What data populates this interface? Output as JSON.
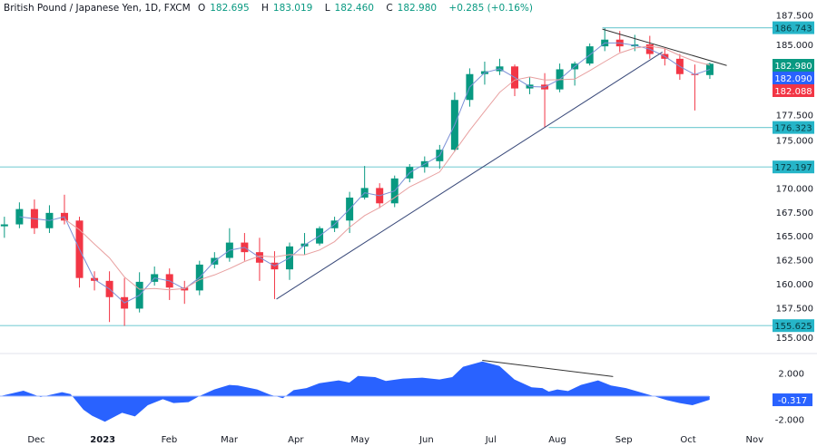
{
  "header": {
    "symbol": "British Pound / Japanese Yen, 1D, FXCM",
    "open_prefix": "O",
    "open": "182.695",
    "high_prefix": "H",
    "high": "183.019",
    "low_prefix": "L",
    "low": "182.460",
    "close_prefix": "C",
    "close": "182.980",
    "change": "+0.285 (+0.16%)"
  },
  "chart_data": [
    {
      "type": "candlestick",
      "interval_shown": "weekly approximation of daily chart",
      "y_ticks": [
        "187.500",
        "185.000",
        "177.500",
        "175.000",
        "170.000",
        "167.500",
        "165.000",
        "162.500",
        "160.000",
        "157.500",
        "155.000"
      ],
      "ylim": [
        155,
        187.5
      ],
      "x_ticks": [
        {
          "label": "Dec",
          "date": "2022-12-01"
        },
        {
          "label": "2023",
          "date": "2023-01-01",
          "bold": true
        },
        {
          "label": "Feb",
          "date": "2023-02-01"
        },
        {
          "label": "Mar",
          "date": "2023-03-01"
        },
        {
          "label": "Apr",
          "date": "2023-04-01"
        },
        {
          "label": "May",
          "date": "2023-05-01"
        },
        {
          "label": "Jun",
          "date": "2023-06-01"
        },
        {
          "label": "Jul",
          "date": "2023-07-01"
        },
        {
          "label": "Aug",
          "date": "2023-08-01"
        },
        {
          "label": "Sep",
          "date": "2023-09-01"
        },
        {
          "label": "Oct",
          "date": "2023-10-01"
        },
        {
          "label": "Nov",
          "date": "2023-11-01"
        }
      ],
      "candles": [
        [
          "2022-11-14",
          166.0,
          167.0,
          164.8,
          166.2
        ],
        [
          "2022-11-21",
          166.2,
          168.5,
          165.8,
          167.8
        ],
        [
          "2022-11-28",
          167.8,
          168.8,
          165.2,
          165.8
        ],
        [
          "2022-12-05",
          165.8,
          168.2,
          165.3,
          167.4
        ],
        [
          "2022-12-12",
          167.4,
          169.3,
          166.2,
          166.6
        ],
        [
          "2022-12-19",
          166.6,
          167.0,
          159.6,
          160.6
        ],
        [
          "2022-12-26",
          160.6,
          161.3,
          159.3,
          160.3
        ],
        [
          "2023-01-02",
          160.3,
          161.3,
          156.0,
          158.6
        ],
        [
          "2023-01-09",
          158.6,
          160.6,
          155.6,
          157.4
        ],
        [
          "2023-01-16",
          157.4,
          161.2,
          157.0,
          160.2
        ],
        [
          "2023-01-23",
          160.2,
          161.8,
          159.8,
          161.0
        ],
        [
          "2023-01-30",
          161.0,
          161.6,
          158.3,
          159.6
        ],
        [
          "2023-02-06",
          159.6,
          160.3,
          157.9,
          159.3
        ],
        [
          "2023-02-13",
          159.3,
          162.4,
          158.8,
          162.0
        ],
        [
          "2023-02-20",
          162.0,
          163.3,
          161.6,
          162.7
        ],
        [
          "2023-02-27",
          162.7,
          165.8,
          162.3,
          164.3
        ],
        [
          "2023-03-06",
          164.3,
          165.3,
          162.4,
          163.3
        ],
        [
          "2023-03-13",
          163.3,
          164.8,
          160.3,
          162.2
        ],
        [
          "2023-03-20",
          162.2,
          163.4,
          158.4,
          161.5
        ],
        [
          "2023-03-27",
          161.5,
          164.3,
          160.4,
          163.9
        ],
        [
          "2023-04-03",
          163.9,
          165.3,
          163.0,
          164.2
        ],
        [
          "2023-04-10",
          164.2,
          166.0,
          164.0,
          165.8
        ],
        [
          "2023-04-17",
          165.8,
          167.0,
          165.4,
          166.6
        ],
        [
          "2023-04-24",
          166.6,
          169.6,
          165.3,
          169.0
        ],
        [
          "2023-05-01",
          169.0,
          172.3,
          168.8,
          170.0
        ],
        [
          "2023-05-08",
          170.0,
          170.5,
          167.9,
          168.4
        ],
        [
          "2023-05-15",
          168.4,
          171.3,
          168.0,
          171.0
        ],
        [
          "2023-05-22",
          171.0,
          172.5,
          170.6,
          172.2
        ],
        [
          "2023-05-29",
          172.2,
          173.3,
          171.6,
          172.8
        ],
        [
          "2023-06-05",
          172.8,
          174.5,
          172.0,
          174.0
        ],
        [
          "2023-06-12",
          174.0,
          180.0,
          173.8,
          179.2
        ],
        [
          "2023-06-19",
          179.2,
          182.5,
          178.5,
          181.9
        ],
        [
          "2023-06-26",
          181.9,
          183.2,
          180.8,
          182.2
        ],
        [
          "2023-07-03",
          182.2,
          183.5,
          181.8,
          182.7
        ],
        [
          "2023-07-10",
          182.7,
          182.9,
          179.6,
          180.4
        ],
        [
          "2023-07-17",
          180.4,
          181.6,
          179.8,
          180.8
        ],
        [
          "2023-07-24",
          180.8,
          182.0,
          176.3,
          180.3
        ],
        [
          "2023-07-31",
          180.3,
          183.0,
          180.0,
          182.4
        ],
        [
          "2023-08-07",
          182.4,
          183.2,
          180.7,
          183.0
        ],
        [
          "2023-08-14",
          183.0,
          185.1,
          182.8,
          184.8
        ],
        [
          "2023-08-21",
          184.8,
          186.7,
          184.3,
          185.5
        ],
        [
          "2023-08-28",
          185.5,
          186.4,
          184.2,
          184.8
        ],
        [
          "2023-09-04",
          184.8,
          186.0,
          184.3,
          185.0
        ],
        [
          "2023-09-11",
          185.0,
          185.9,
          183.5,
          184.0
        ],
        [
          "2023-09-18",
          184.0,
          184.6,
          182.8,
          183.5
        ],
        [
          "2023-09-25",
          183.5,
          184.0,
          181.3,
          181.9
        ],
        [
          "2023-10-02",
          181.9,
          182.9,
          178.1,
          181.8
        ],
        [
          "2023-10-09",
          181.8,
          183.1,
          181.4,
          182.98
        ]
      ],
      "horizontal_levels": [
        {
          "value": 186.743,
          "label": "186.743",
          "from": "2023-08-22"
        },
        {
          "value": 176.323,
          "label": "176.323",
          "from": "2023-07-28"
        },
        {
          "value": 172.197,
          "label": "172.197",
          "from": null
        },
        {
          "value": 155.625,
          "label": "155.625",
          "from": null
        }
      ],
      "trendlines": [
        {
          "from": [
            "2023-03-23",
            158.4
          ],
          "to": [
            "2023-09-19",
            184.2
          ],
          "color": "#3a4a7a"
        },
        {
          "from": [
            "2023-08-22",
            186.6
          ],
          "to": [
            "2023-10-19",
            182.8
          ],
          "color": "#333333"
        }
      ],
      "price_labels": [
        {
          "label": "182.980",
          "color": "#089981",
          "value": 182.98
        },
        {
          "label": "182.090",
          "color": "#2962ff",
          "value": 182.09
        },
        {
          "label": "182.088",
          "color": "#f23645",
          "value": 182.088
        }
      ]
    },
    {
      "type": "area",
      "y_ticks": [
        "2.000",
        "-2.000"
      ],
      "ylim": [
        -2.5,
        3.5
      ],
      "last_value_label": "-0.317",
      "points": [
        [
          "2022-11-14",
          0
        ],
        [
          "2022-11-25",
          0.47
        ],
        [
          "2022-12-03",
          -0.08
        ],
        [
          "2022-12-13",
          0.34
        ],
        [
          "2022-12-17",
          0.18
        ],
        [
          "2022-12-23",
          -1.18
        ],
        [
          "2022-12-27",
          -1.7
        ],
        [
          "2023-01-02",
          -2.22
        ],
        [
          "2023-01-10",
          -1.44
        ],
        [
          "2023-01-16",
          -1.75
        ],
        [
          "2023-01-22",
          -0.78
        ],
        [
          "2023-01-29",
          -0.26
        ],
        [
          "2023-02-03",
          -0.6
        ],
        [
          "2023-02-10",
          -0.52
        ],
        [
          "2023-02-15",
          0
        ],
        [
          "2023-02-22",
          0.58
        ],
        [
          "2023-03-01",
          0.97
        ],
        [
          "2023-03-05",
          0.92
        ],
        [
          "2023-03-14",
          0.58
        ],
        [
          "2023-03-20",
          0.13
        ],
        [
          "2023-03-26",
          -0.18
        ],
        [
          "2023-03-31",
          0.52
        ],
        [
          "2023-04-06",
          0.7
        ],
        [
          "2023-04-12",
          1.12
        ],
        [
          "2023-04-21",
          1.36
        ],
        [
          "2023-04-26",
          1.18
        ],
        [
          "2023-04-30",
          1.75
        ],
        [
          "2023-05-08",
          1.65
        ],
        [
          "2023-05-13",
          1.31
        ],
        [
          "2023-05-21",
          1.52
        ],
        [
          "2023-05-30",
          1.6
        ],
        [
          "2023-06-07",
          1.44
        ],
        [
          "2023-06-13",
          1.65
        ],
        [
          "2023-06-18",
          2.54
        ],
        [
          "2023-06-27",
          3.0
        ],
        [
          "2023-07-05",
          2.61
        ],
        [
          "2023-07-12",
          1.44
        ],
        [
          "2023-07-20",
          0.76
        ],
        [
          "2023-07-25",
          0.7
        ],
        [
          "2023-07-28",
          0.39
        ],
        [
          "2023-08-01",
          0.58
        ],
        [
          "2023-08-06",
          0.44
        ],
        [
          "2023-08-12",
          0.97
        ],
        [
          "2023-08-20",
          1.36
        ],
        [
          "2023-08-26",
          0.92
        ],
        [
          "2023-09-02",
          0.7
        ],
        [
          "2023-09-15",
          0
        ],
        [
          "2023-09-21",
          -0.34
        ],
        [
          "2023-09-27",
          -0.6
        ],
        [
          "2023-10-03",
          -0.78
        ],
        [
          "2023-10-11",
          -0.317
        ]
      ],
      "trendline": {
        "from": [
          "2023-06-27",
          3.1
        ],
        "to": [
          "2023-08-27",
          1.7
        ]
      }
    }
  ],
  "colors": {
    "up": "#089981",
    "down": "#f23645",
    "level": "#7fcfd6",
    "level_label": "#26b5c8",
    "osc": "#2962ff",
    "ma_fast": "#7b8fd6",
    "ma_slow": "#e8a0a0"
  }
}
